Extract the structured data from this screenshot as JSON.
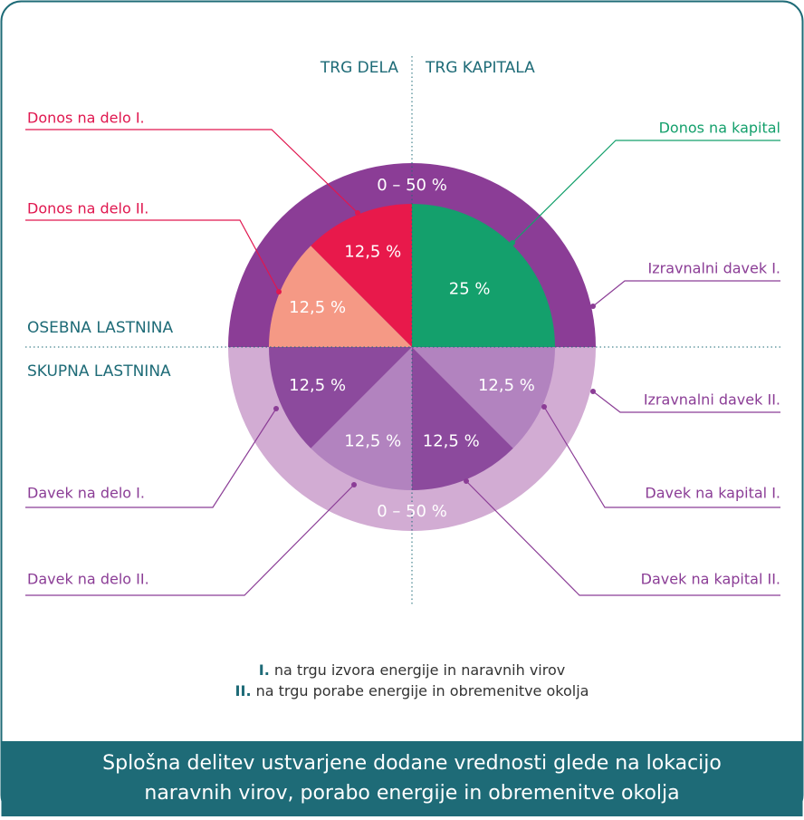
{
  "header": {
    "left": "TRG DELA",
    "right": "TRG KAPITALA"
  },
  "rows": {
    "top": "OSEBNA LASTNINA",
    "bottom": "SKUPNA LASTNINA"
  },
  "ring": {
    "top": "0 – 50 %",
    "bottom": "0 – 50 %",
    "top_color": "#8b3d96",
    "bottom_color": "#d2acd3"
  },
  "segments": [
    {
      "value": 25,
      "label": "25 %",
      "color": "#14a06c"
    },
    {
      "value": 12.5,
      "label": "12,5 %",
      "color": "#b283bf"
    },
    {
      "value": 12.5,
      "label": "12,5 %",
      "color": "#8c4a9d"
    },
    {
      "value": 12.5,
      "label": "12,5 %",
      "color": "#b283bf"
    },
    {
      "value": 12.5,
      "label": "12,5 %",
      "color": "#8c4a9d"
    },
    {
      "value": 12.5,
      "label": "12,5 %",
      "color": "#f59985"
    },
    {
      "value": 12.5,
      "label": "12,5 %",
      "color": "#e8194b"
    }
  ],
  "callouts": [
    {
      "text": "Donos na delo I.",
      "color": "#e0174f"
    },
    {
      "text": "Donos na delo II.",
      "color": "#e0174f"
    },
    {
      "text": "Donos na kapital",
      "color": "#14a06c"
    },
    {
      "text": "Izravnalni davek I.",
      "color": "#8b3d96"
    },
    {
      "text": "Izravnalni davek II.",
      "color": "#8b3d96"
    },
    {
      "text": "Davek na kapital I.",
      "color": "#8b3d96"
    },
    {
      "text": "Davek na kapital II.",
      "color": "#8b3d96"
    },
    {
      "text": "Davek na delo I.",
      "color": "#8b3d96"
    },
    {
      "text": "Davek na delo II.",
      "color": "#8b3d96"
    }
  ],
  "legend": [
    {
      "key": "I.",
      "text": "na trgu izvora energije in naravnih virov"
    },
    {
      "key": "II.",
      "text": "na trgu porabe energije in obremenitve okolja"
    }
  ],
  "caption": [
    "Splošna delitev ustvarjene dodane vrednosti glede na lokacijo",
    "naravnih virov, porabo energije in obremenitve okolja"
  ]
}
